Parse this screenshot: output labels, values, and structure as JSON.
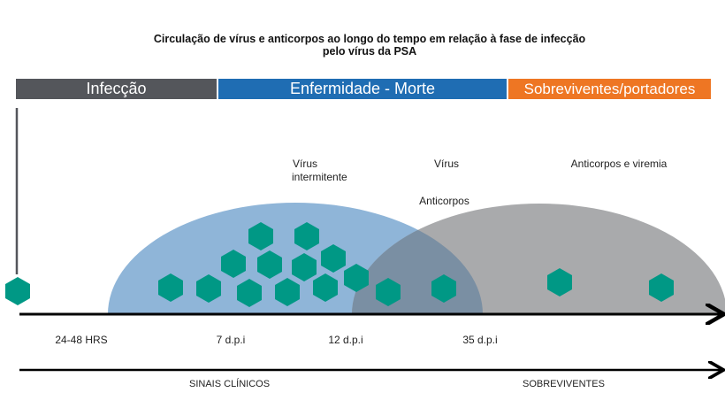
{
  "title_line1": "Circulação de vírus e anticorpos ao longo do tempo em relação à fase de infecção",
  "title_line2": "pelo vírus da PSA",
  "phases": [
    {
      "label": "Infecção",
      "color": "#54565b"
    },
    {
      "label": "Enfermidade - Morte",
      "color": "#1f6db3"
    },
    {
      "label": "Sobreviventes/portadores",
      "color": "#ee7623"
    }
  ],
  "annotations": {
    "virus_intermitente_1": "Vírus",
    "virus_intermitente_2": "intermitente",
    "virus": "Vírus",
    "anticorpos": "Anticorpos",
    "anticorpos_viremia": "Anticorpos e viremia"
  },
  "timeline_ticks": [
    "24-48 HRS",
    "7 d.p.i",
    "12 d.p.i",
    "35 d.p.i"
  ],
  "bottom_labels": {
    "clinical": "SINAIS CLÍNICOS",
    "survivors": "SOBREVIVENTES"
  },
  "colors": {
    "virus": "#009885",
    "virus_curve": "#8fb5d8",
    "antibody_curve": "#a9aaac",
    "overlap": "#7a8fa3"
  },
  "icons": {
    "virus": "hexagon-virus-icon"
  }
}
